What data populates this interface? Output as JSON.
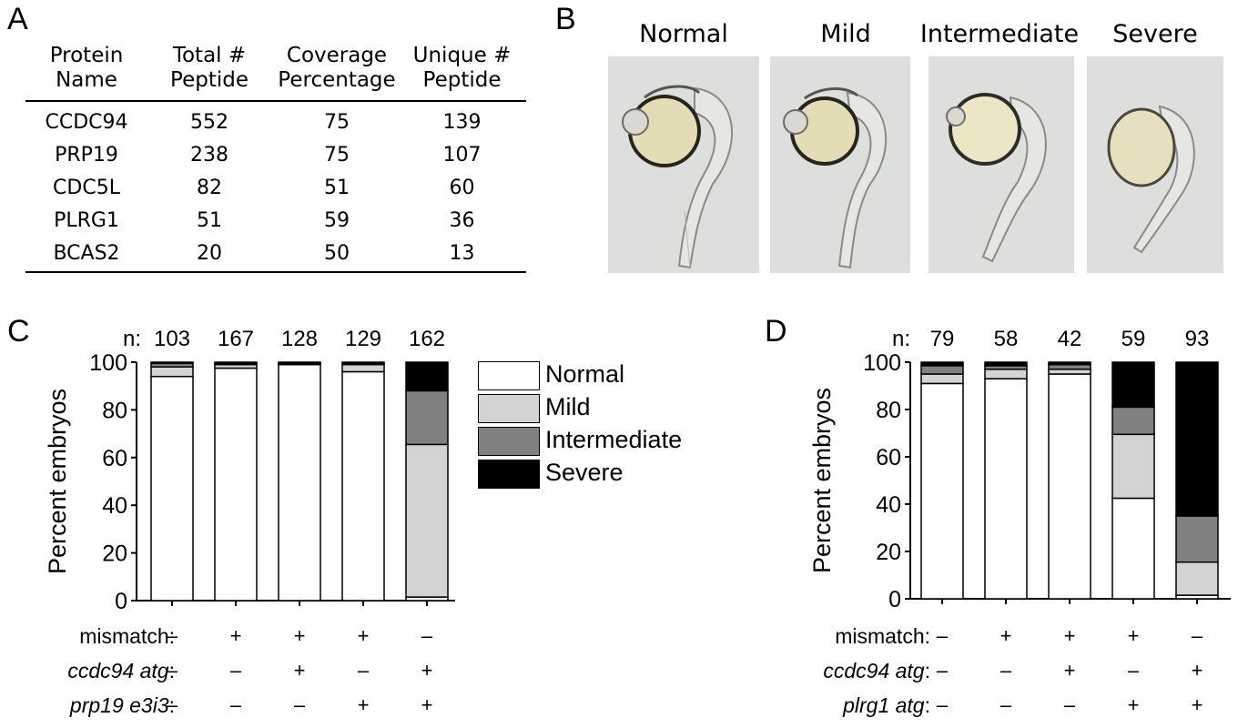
{
  "panel_letters": {
    "a": "A",
    "b": "B",
    "c": "C",
    "d": "D"
  },
  "table": {
    "headers": [
      [
        "Protein",
        "Name"
      ],
      [
        "Total #",
        "Peptide"
      ],
      [
        "Coverage",
        "Percentage"
      ],
      [
        "Unique #",
        "Peptide"
      ]
    ],
    "rows": [
      [
        "CCDC94",
        "552",
        "75",
        "139"
      ],
      [
        "PRP19",
        "238",
        "75",
        "107"
      ],
      [
        "CDC5L",
        "82",
        "51",
        "60"
      ],
      [
        "PLRG1",
        "51",
        "59",
        "36"
      ],
      [
        "BCAS2",
        "20",
        "50",
        "13"
      ]
    ]
  },
  "photos": {
    "titles": [
      "Normal",
      "Mild",
      "Intermediate",
      "Severe"
    ]
  },
  "legend": {
    "items": [
      {
        "label": "Normal",
        "color": "#ffffff"
      },
      {
        "label": "Mild",
        "color": "#d3d3d3"
      },
      {
        "label": "Intermediate",
        "color": "#808080"
      },
      {
        "label": "Severe",
        "color": "#000000"
      }
    ]
  },
  "chart_data": [
    {
      "type": "bar",
      "stacked": true,
      "panel": "C",
      "ylabel": "Percent embryos",
      "ylim": [
        0,
        100
      ],
      "yticks": [
        "0",
        "20",
        "40",
        "60",
        "80",
        "100"
      ],
      "n_prefix": "n:",
      "n": [
        "103",
        "167",
        "128",
        "129",
        "162"
      ],
      "series": [
        {
          "name": "Normal",
          "values": [
            94,
            97.5,
            99,
            96,
            1.5
          ]
        },
        {
          "name": "Mild",
          "values": [
            4,
            1.5,
            0.5,
            3,
            64
          ]
        },
        {
          "name": "Intermediate",
          "values": [
            1.5,
            0.5,
            0.3,
            0.5,
            22.5
          ]
        },
        {
          "name": "Severe",
          "values": [
            0.5,
            0.5,
            0.2,
            0.5,
            12
          ]
        }
      ],
      "conditions": [
        {
          "label": "mismatch",
          "italic": false,
          "marks": [
            "–",
            "+",
            "+",
            "+",
            "–"
          ]
        },
        {
          "label": "ccdc94 atg",
          "italic": true,
          "marks": [
            "–",
            "–",
            "+",
            "–",
            "+"
          ]
        },
        {
          "label": "prp19 e3i3",
          "italic": true,
          "marks": [
            "–",
            "–",
            "–",
            "+",
            "+"
          ]
        }
      ]
    },
    {
      "type": "bar",
      "stacked": true,
      "panel": "D",
      "ylabel": "Percent embryos",
      "ylim": [
        0,
        100
      ],
      "yticks": [
        "0",
        "20",
        "40",
        "60",
        "80",
        "100"
      ],
      "n_prefix": "n:",
      "n": [
        "79",
        "58",
        "42",
        "59",
        "93"
      ],
      "series": [
        {
          "name": "Normal",
          "values": [
            91,
            93,
            95,
            42.5,
            1.5
          ]
        },
        {
          "name": "Mild",
          "values": [
            4,
            4,
            2,
            27,
            14
          ]
        },
        {
          "name": "Intermediate",
          "values": [
            3.5,
            1.5,
            2,
            11.5,
            19.5
          ]
        },
        {
          "name": "Severe",
          "values": [
            1.5,
            1.5,
            1,
            19,
            65
          ]
        }
      ],
      "conditions": [
        {
          "label": "mismatch",
          "italic": false,
          "marks": [
            "–",
            "+",
            "+",
            "+",
            "–"
          ]
        },
        {
          "label": "ccdc94 atg",
          "italic": true,
          "marks": [
            "–",
            "–",
            "+",
            "–",
            "+"
          ]
        },
        {
          "label": "plrg1 atg",
          "italic": true,
          "marks": [
            "–",
            "–",
            "–",
            "+",
            "+"
          ]
        }
      ]
    }
  ]
}
